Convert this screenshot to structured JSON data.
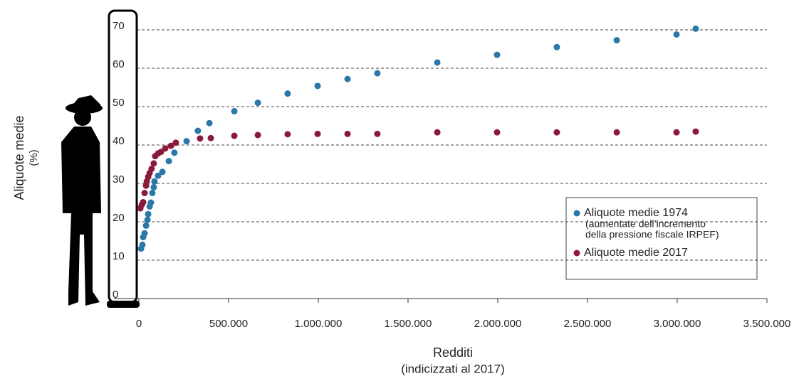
{
  "chart_data": {
    "type": "scatter",
    "y_label": "Aliquote medie",
    "y_label_unit": "(%)",
    "x_label": "Redditi",
    "x_label_sub": "(indicizzati al 2017)",
    "xlim": [
      0,
      3500000
    ],
    "ylim": [
      0,
      75
    ],
    "xticks": [
      0,
      {
        "value": 500000,
        "label": "500.000"
      },
      {
        "value": 1000000,
        "label": "1.000.000"
      },
      {
        "value": 1500000,
        "label": "1.500.000"
      },
      {
        "value": 2000000,
        "label": "2.000.000"
      },
      {
        "value": 2500000,
        "label": "2.500.000"
      },
      {
        "value": 3000000,
        "label": "3.000.000"
      },
      {
        "value": 3500000,
        "label": "3.500.000"
      }
    ],
    "yticks": [
      0,
      10,
      20,
      30,
      40,
      50,
      60,
      70
    ],
    "grid": true,
    "legend": "lower right",
    "series": [
      {
        "name": "Aliquote medie 1974",
        "note": [
          "(aumentate dell’incremento",
          "della pressione fiscale IRPEF)"
        ],
        "color": "#2a78a8",
        "x": [
          12000,
          20000,
          24000,
          32000,
          40000,
          48000,
          52000,
          60000,
          67000,
          75000,
          83000,
          87000,
          107000,
          131000,
          167000,
          198000,
          266000,
          329000,
          393000,
          532000,
          663000,
          829000,
          996000,
          1163000,
          1329000,
          1663000,
          1996000,
          2329000,
          2663000,
          2996000,
          3103000
        ],
        "values": [
          13,
          14,
          16,
          17,
          19,
          20.5,
          22,
          24,
          25,
          27.5,
          29,
          30.5,
          32,
          33,
          35.8,
          38,
          41,
          43.7,
          45.7,
          48.8,
          51,
          53.4,
          55.4,
          57.2,
          58.7,
          61.5,
          63.5,
          65.5,
          67.3,
          68.8,
          70.3
        ]
      },
      {
        "name": "Aliquote medie 2017",
        "color": "#8b1a3a",
        "x": [
          8000,
          16000,
          24000,
          32000,
          40000,
          44000,
          52000,
          60000,
          71000,
          83000,
          91000,
          107000,
          123000,
          147000,
          179000,
          206000,
          341000,
          401000,
          532000,
          663000,
          829000,
          996000,
          1163000,
          1329000,
          1663000,
          1996000,
          2329000,
          2663000,
          2996000,
          3103000
        ],
        "values": [
          23.5,
          24.4,
          25.1,
          27.5,
          29.4,
          30.5,
          31.7,
          32.7,
          33.8,
          35.2,
          37.1,
          37.8,
          38.2,
          39.1,
          39.8,
          40.6,
          41.7,
          41.8,
          42.4,
          42.6,
          42.8,
          42.9,
          42.9,
          42.9,
          43.3,
          43.3,
          43.3,
          43.3,
          43.3,
          43.5
        ]
      }
    ]
  }
}
